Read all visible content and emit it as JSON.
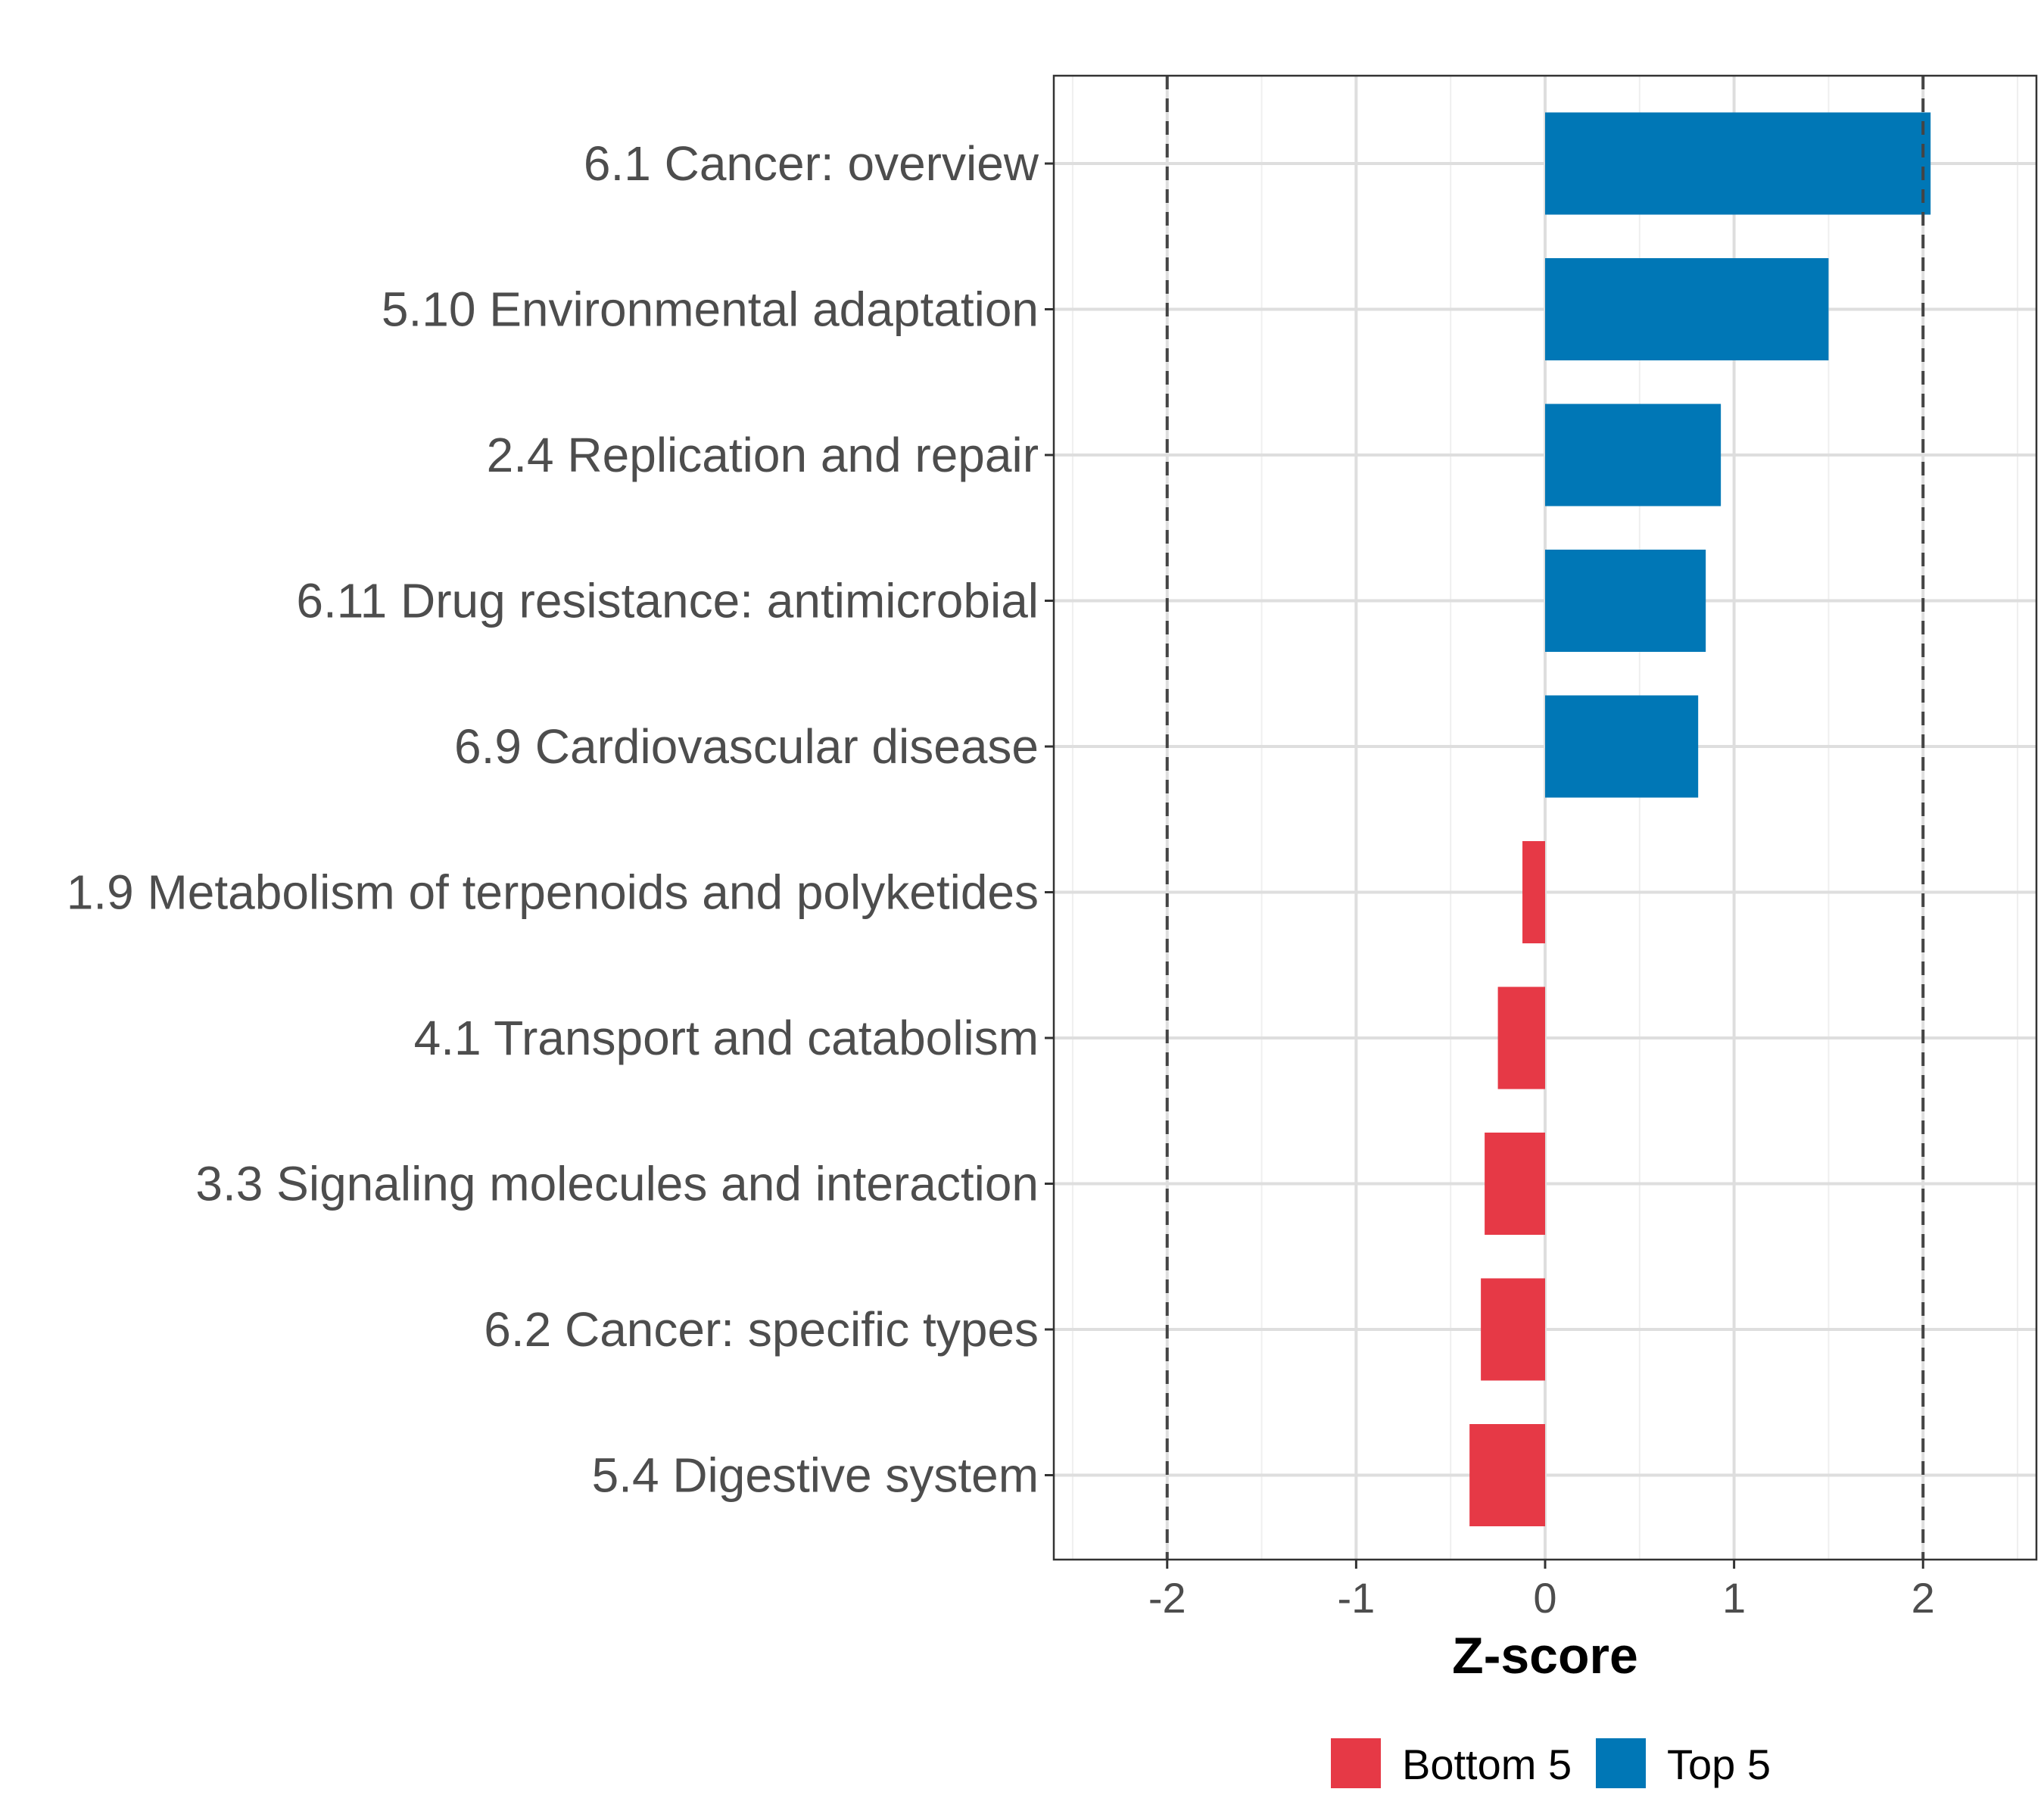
{
  "chart_data": {
    "type": "bar",
    "orientation": "horizontal",
    "title": "",
    "xlabel": "Z-score",
    "ylabel": "",
    "xlim": [
      -2.6,
      2.6
    ],
    "xticks": [
      -2,
      -1,
      0,
      1,
      2
    ],
    "xtick_labels": [
      "-2",
      "-1",
      "0",
      "1",
      "2"
    ],
    "reference_lines": [
      -2,
      2
    ],
    "grid": true,
    "categories": [
      "6.1 Cancer: overview",
      "5.10 Environmental adaptation",
      "2.4 Replication and repair",
      "6.11 Drug resistance: antimicrobial",
      "6.9 Cardiovascular disease",
      "1.9 Metabolism of terpenoids and polyketides",
      "4.1 Transport and catabolism",
      "3.3 Signaling molecules and interaction",
      "6.2 Cancer: specific types",
      "5.4 Digestive system"
    ],
    "values": [
      2.04,
      1.5,
      0.93,
      0.85,
      0.81,
      -0.12,
      -0.25,
      -0.32,
      -0.34,
      -0.4
    ],
    "groups": [
      "Top 5",
      "Top 5",
      "Top 5",
      "Top 5",
      "Top 5",
      "Bottom 5",
      "Bottom 5",
      "Bottom 5",
      "Bottom 5",
      "Bottom 5"
    ],
    "legend": {
      "position": "bottom",
      "entries": [
        {
          "label": "Bottom 5",
          "color": "#e63946"
        },
        {
          "label": "Top 5",
          "color": "#0077b6"
        }
      ]
    }
  }
}
